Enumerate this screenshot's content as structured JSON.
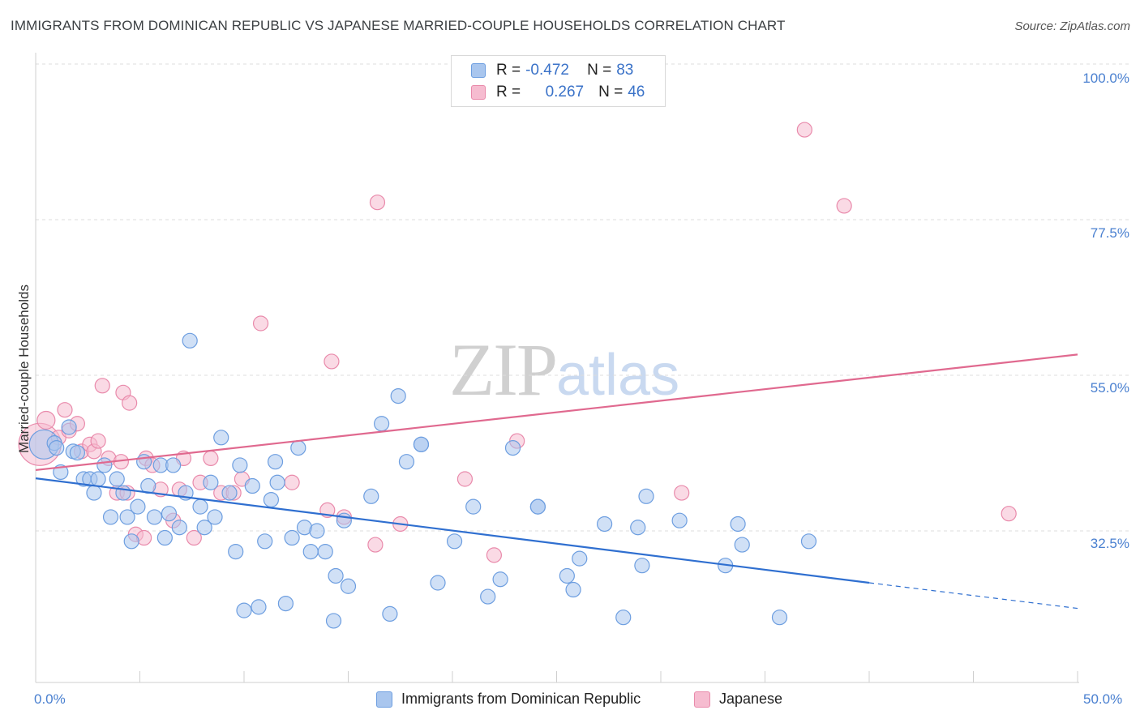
{
  "header": {
    "title": "IMMIGRANTS FROM DOMINICAN REPUBLIC VS JAPANESE MARRIED-COUPLE HOUSEHOLDS CORRELATION CHART",
    "source": "Source: ZipAtlas.com"
  },
  "watermark": {
    "zip": "ZIP",
    "atlas": "atlas"
  },
  "legend": {
    "r_label": "R =",
    "n_label": "N =",
    "blue": {
      "r": "-0.472",
      "n": "83"
    },
    "pink": {
      "r": "0.267",
      "n": "46"
    }
  },
  "colors": {
    "blue_fill": "#a9c6ee",
    "blue_stroke": "#6d9ee0",
    "blue_line": "#2f6fd0",
    "pink_fill": "#f6bcd0",
    "pink_stroke": "#e98aab",
    "pink_line": "#e0698f",
    "axis_text": "#4a80d0",
    "grid": "#dddddd"
  },
  "chart_data": {
    "type": "scatter",
    "title": "IMMIGRANTS FROM DOMINICAN REPUBLIC VS JAPANESE MARRIED-COUPLE HOUSEHOLDS CORRELATION CHART",
    "xlabel": "",
    "ylabel": "Married-couple Households",
    "xlim": [
      0,
      50
    ],
    "ylim": [
      10,
      105
    ],
    "x_tick_labels": [
      "0.0%",
      "50.0%"
    ],
    "y_tick_labels": [
      "32.5%",
      "55.0%",
      "77.5%",
      "100.0%"
    ],
    "y_ticks": [
      32.5,
      55.0,
      77.5,
      100.0
    ],
    "grid": true,
    "legend_position": "bottom",
    "series": [
      {
        "name": "Immigrants from Dominican Republic",
        "color": "#6d9ee0",
        "R": -0.472,
        "N": 83,
        "trend": {
          "x": [
            0,
            40
          ],
          "y": [
            40.1,
            25.0
          ],
          "dashed_to": [
            50,
            21.3
          ]
        },
        "points": [
          [
            0.4,
            45.0,
            18
          ],
          [
            0.9,
            45.2,
            9
          ],
          [
            1.0,
            44.5,
            9
          ],
          [
            1.2,
            41.0,
            9
          ],
          [
            1.6,
            47.5,
            9
          ],
          [
            1.8,
            44.0,
            9
          ],
          [
            2.0,
            43.8,
            9
          ],
          [
            2.3,
            40.0,
            9
          ],
          [
            2.6,
            40.0,
            9
          ],
          [
            2.8,
            38.0,
            9
          ],
          [
            3.0,
            40.0,
            9
          ],
          [
            3.3,
            42.0,
            9
          ],
          [
            3.6,
            34.5,
            9
          ],
          [
            3.9,
            40.0,
            9
          ],
          [
            4.2,
            38.0,
            9
          ],
          [
            4.4,
            34.5,
            9
          ],
          [
            4.6,
            31.0,
            9
          ],
          [
            4.9,
            36.0,
            9
          ],
          [
            5.2,
            42.5,
            9
          ],
          [
            5.4,
            39.0,
            9
          ],
          [
            5.7,
            34.5,
            9
          ],
          [
            6.0,
            42.0,
            9
          ],
          [
            6.2,
            31.5,
            9
          ],
          [
            6.4,
            35.0,
            9
          ],
          [
            6.6,
            42.0,
            9
          ],
          [
            6.9,
            33.0,
            9
          ],
          [
            7.2,
            38.0,
            9
          ],
          [
            7.4,
            60.0,
            9
          ],
          [
            7.9,
            36.0,
            9
          ],
          [
            8.1,
            33.0,
            9
          ],
          [
            8.4,
            39.5,
            9
          ],
          [
            8.6,
            34.5,
            9
          ],
          [
            8.9,
            46.0,
            9
          ],
          [
            9.3,
            38.0,
            9
          ],
          [
            9.6,
            29.5,
            9
          ],
          [
            9.8,
            42.0,
            9
          ],
          [
            10.0,
            21.0,
            9
          ],
          [
            10.4,
            39.0,
            9
          ],
          [
            10.7,
            21.5,
            9
          ],
          [
            11.0,
            31.0,
            9
          ],
          [
            11.3,
            37.0,
            9
          ],
          [
            11.5,
            42.5,
            9
          ],
          [
            11.6,
            39.5,
            9
          ],
          [
            12.0,
            22.0,
            9
          ],
          [
            12.3,
            31.5,
            9
          ],
          [
            12.6,
            44.5,
            9
          ],
          [
            12.9,
            33.0,
            9
          ],
          [
            13.2,
            29.5,
            9
          ],
          [
            13.5,
            32.5,
            9
          ],
          [
            13.9,
            29.5,
            9
          ],
          [
            14.3,
            19.5,
            9
          ],
          [
            14.4,
            26.0,
            9
          ],
          [
            14.8,
            34.0,
            9
          ],
          [
            15.0,
            24.5,
            9
          ],
          [
            16.1,
            37.5,
            9
          ],
          [
            16.6,
            48.0,
            9
          ],
          [
            17.0,
            20.5,
            9
          ],
          [
            17.4,
            52.0,
            9
          ],
          [
            17.8,
            42.5,
            9
          ],
          [
            18.5,
            45.0,
            9
          ],
          [
            19.3,
            25.0,
            9
          ],
          [
            20.1,
            31.0,
            9
          ],
          [
            21.0,
            36.0,
            9
          ],
          [
            21.7,
            23.0,
            9
          ],
          [
            22.3,
            25.5,
            9
          ],
          [
            22.9,
            44.5,
            9
          ],
          [
            24.1,
            36.0,
            9
          ],
          [
            25.5,
            26.0,
            9
          ],
          [
            25.8,
            24.0,
            9
          ],
          [
            26.1,
            28.5,
            9
          ],
          [
            27.3,
            33.5,
            9
          ],
          [
            28.2,
            20.0,
            9
          ],
          [
            28.9,
            33.0,
            9
          ],
          [
            29.1,
            27.5,
            9
          ],
          [
            29.3,
            37.5,
            9
          ],
          [
            30.9,
            34.0,
            9
          ],
          [
            33.1,
            27.5,
            9
          ],
          [
            33.7,
            33.5,
            9
          ],
          [
            33.9,
            30.5,
            9
          ],
          [
            35.7,
            20.0,
            9
          ],
          [
            37.1,
            31.0,
            9
          ],
          [
            18.5,
            45.0,
            9
          ],
          [
            24.1,
            36.0,
            9
          ]
        ]
      },
      {
        "name": "Japanese",
        "color": "#e98aab",
        "R": 0.267,
        "N": 46,
        "trend": {
          "x": [
            0,
            50
          ],
          "y": [
            41.3,
            58.0
          ]
        },
        "points": [
          [
            0.2,
            45.0,
            26
          ],
          [
            0.5,
            48.5,
            11
          ],
          [
            1.1,
            46.0,
            9
          ],
          [
            1.4,
            50.0,
            9
          ],
          [
            1.6,
            47.0,
            9
          ],
          [
            2.0,
            48.0,
            9
          ],
          [
            2.2,
            44.0,
            9
          ],
          [
            2.6,
            45.0,
            9
          ],
          [
            2.8,
            44.0,
            9
          ],
          [
            3.0,
            45.5,
            9
          ],
          [
            3.2,
            53.5,
            9
          ],
          [
            3.5,
            43.0,
            9
          ],
          [
            3.9,
            38.0,
            9
          ],
          [
            4.1,
            42.5,
            9
          ],
          [
            4.2,
            52.5,
            9
          ],
          [
            4.4,
            38.0,
            9
          ],
          [
            4.5,
            51.0,
            9
          ],
          [
            4.8,
            32.0,
            9
          ],
          [
            5.2,
            31.5,
            9
          ],
          [
            5.3,
            43.0,
            9
          ],
          [
            5.6,
            42.0,
            9
          ],
          [
            6.0,
            38.5,
            9
          ],
          [
            6.6,
            34.0,
            9
          ],
          [
            6.9,
            38.5,
            9
          ],
          [
            7.1,
            43.0,
            9
          ],
          [
            7.6,
            31.5,
            9
          ],
          [
            7.9,
            39.5,
            9
          ],
          [
            8.4,
            43.0,
            9
          ],
          [
            8.9,
            38.0,
            9
          ],
          [
            9.5,
            38.0,
            9
          ],
          [
            9.9,
            40.0,
            9
          ],
          [
            10.8,
            62.5,
            9
          ],
          [
            12.3,
            39.5,
            9
          ],
          [
            14.0,
            35.5,
            9
          ],
          [
            14.2,
            57.0,
            9
          ],
          [
            14.8,
            34.5,
            9
          ],
          [
            16.3,
            30.5,
            9
          ],
          [
            16.4,
            80.0,
            9
          ],
          [
            17.5,
            33.5,
            9
          ],
          [
            20.6,
            40.0,
            9
          ],
          [
            22.0,
            29.0,
            9
          ],
          [
            23.1,
            45.5,
            9
          ],
          [
            31.0,
            38.0,
            9
          ],
          [
            36.9,
            90.5,
            9
          ],
          [
            38.8,
            79.5,
            9
          ],
          [
            46.7,
            35.0,
            9
          ]
        ]
      }
    ]
  },
  "bottom_legend": {
    "blue": "Immigrants from Dominican Republic",
    "pink": "Japanese"
  }
}
